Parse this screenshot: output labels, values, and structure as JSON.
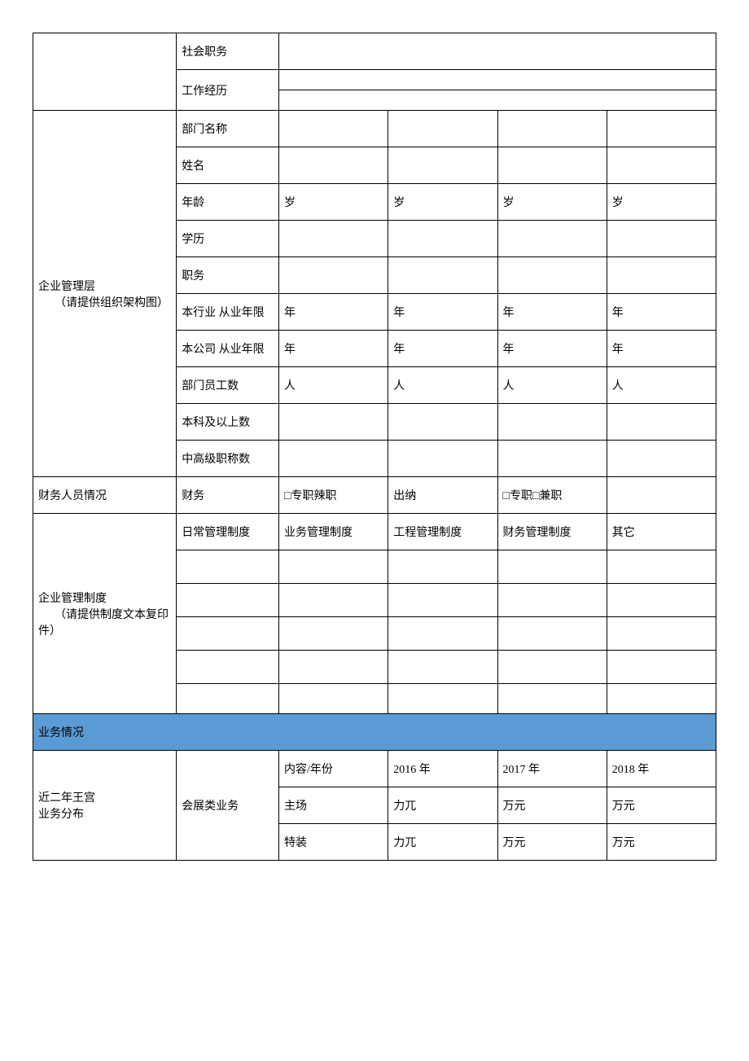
{
  "rows": {
    "social_duty": "社会职务",
    "work_exp": "工作经历",
    "mgmt_section": {
      "title_line1": "企业管理层",
      "title_line2": "（请提供组织架构图）",
      "dept_name": "部门名称",
      "name": "姓名",
      "age": "年龄",
      "age_unit": "岁",
      "education": "学历",
      "position": "职务",
      "industry_years": "本行业 从业年限",
      "company_years": "本公司 从业年限",
      "year_unit": "年",
      "dept_staff": "部门员工数",
      "people_unit": "人",
      "bachelor_count": "本科及以上数",
      "senior_title_count": "中高级职称数"
    },
    "finance": {
      "section": "财务人员情况",
      "finance_label": "财务",
      "fulltime_spicy": "□专职辣职",
      "cashier": "出纳",
      "fulltime_parttime": "□专职□兼职"
    },
    "mgmt_system": {
      "title_line1": "企业管理制度",
      "title_line2": "（请提供制度文本复印件）",
      "daily": "日常管理制度",
      "business": "业务管理制度",
      "project": "工程管理制度",
      "financial": "财务管理制度",
      "other": "其它"
    },
    "business_section": "业务情况",
    "recent_years": {
      "title_line1": "近二年王宫",
      "title_line2": "业务分布",
      "exhibition": "会展类业务",
      "content_year": "内容/年份",
      "y2016": "2016 年",
      "y2017": "2017 年",
      "y2018": "2018 年",
      "main_venue": "主场",
      "special_booth": "特装",
      "unit1": "力兀",
      "unit2": "万元"
    }
  }
}
